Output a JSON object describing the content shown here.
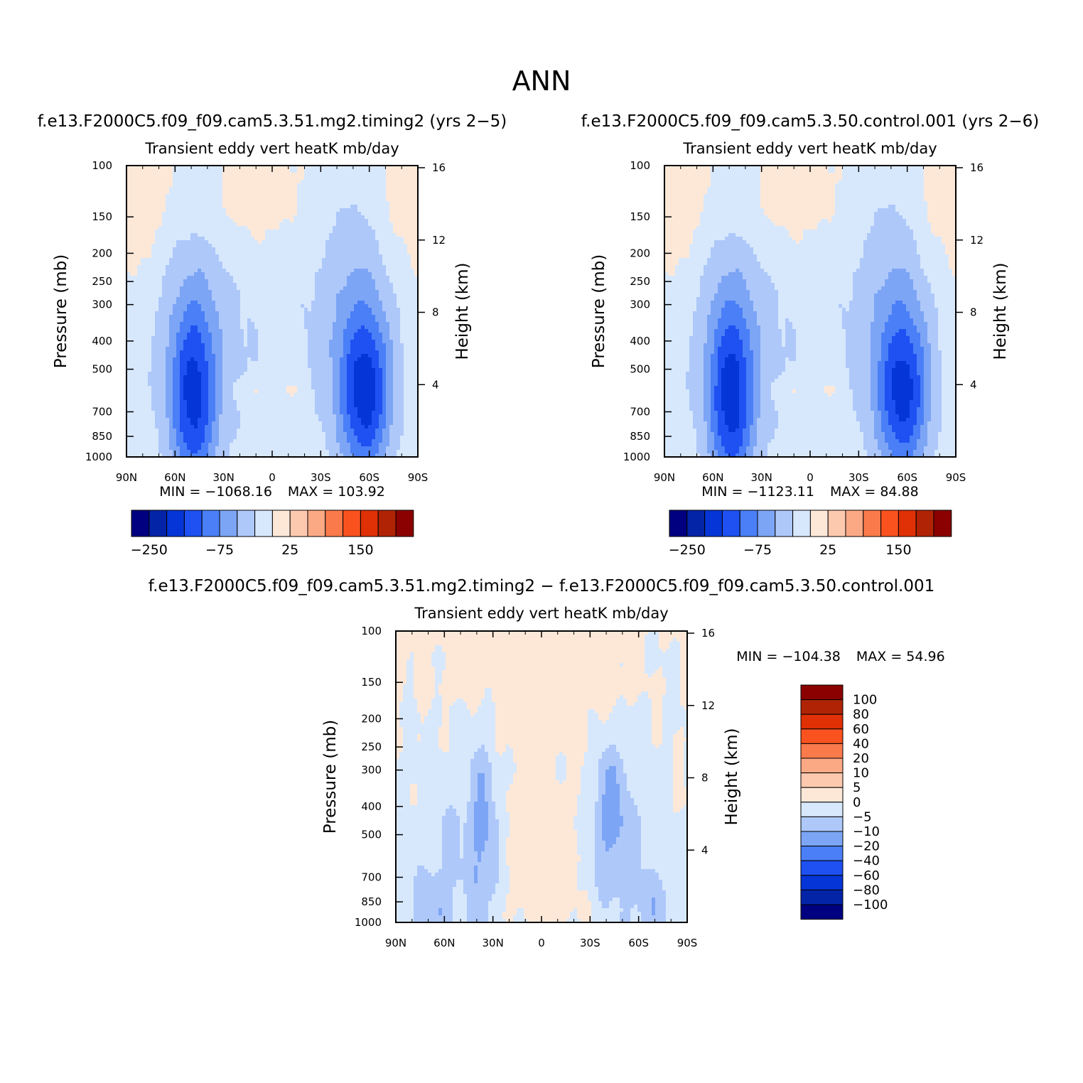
{
  "title": "ANN",
  "colors": {
    "pos_scale": [
      "#000080",
      "#0424a8",
      "#0535d6",
      "#1e50f2",
      "#4a7ff7",
      "#7da5f5",
      "#aec8fa",
      "#d7e8fc",
      "#fde8d8",
      "#fdc9ae",
      "#fba985",
      "#fa7a4c",
      "#f9521f",
      "#df3006",
      "#b02405",
      "#8b0000"
    ],
    "diff_scale": [
      "#000080",
      "#0424a8",
      "#0535d6",
      "#1e50f2",
      "#4a7ff7",
      "#7da5f5",
      "#aec8fa",
      "#d7e8fc",
      "#fde8d8",
      "#fdc9ae",
      "#fba985",
      "#fa7a4c",
      "#f9521f",
      "#df3006",
      "#b02405",
      "#8b0000"
    ]
  },
  "chart_data": [
    {
      "id": "panel-1",
      "type": "heatmap",
      "case_title": "f.e13.F2000C5.f09_f09.cam5.3.51.mg2.timing2 (yrs 2−5)",
      "title": "Transient eddy vert heatK mb/day",
      "ylabel": "Pressure (mb)",
      "ylabel_right": "Height (km)",
      "x_ticks": [
        "90N",
        "60N",
        "30N",
        "0",
        "30S",
        "60S",
        "90S"
      ],
      "y_ticks": [
        "100",
        "150",
        "200",
        "250",
        "300",
        "400",
        "500",
        "700",
        "850",
        "1000"
      ],
      "y_ticks_right": [
        "16",
        "12",
        "8",
        "4"
      ],
      "min_label": "MIN = −1068.16",
      "max_label": "MAX = 103.92",
      "min": -1068.16,
      "max": 103.92,
      "colorbar_labels": [
        "−250",
        "−75",
        "25",
        "150"
      ],
      "plume_intensity": [
        1.0,
        1.0
      ]
    },
    {
      "id": "panel-2",
      "type": "heatmap",
      "case_title": "f.e13.F2000C5.f09_f09.cam5.3.50.control.001 (yrs 2−6)",
      "title": "Transient eddy vert heatK mb/day",
      "ylabel": "Pressure (mb)",
      "ylabel_right": "Height (km)",
      "x_ticks": [
        "90N",
        "60N",
        "30N",
        "0",
        "30S",
        "60S",
        "90S"
      ],
      "y_ticks": [
        "100",
        "150",
        "200",
        "250",
        "300",
        "400",
        "500",
        "700",
        "850",
        "1000"
      ],
      "y_ticks_right": [
        "16",
        "12",
        "8",
        "4"
      ],
      "min_label": "MIN = −1123.11",
      "max_label": "MAX = 84.88",
      "min": -1123.11,
      "max": 84.88,
      "colorbar_labels": [
        "−250",
        "−75",
        "25",
        "150"
      ],
      "plume_intensity": [
        1.05,
        0.95
      ]
    },
    {
      "id": "panel-diff",
      "type": "heatmap",
      "case_title": "f.e13.F2000C5.f09_f09.cam5.3.51.mg2.timing2 − f.e13.F2000C5.f09_f09.cam5.3.50.control.001",
      "title": "Transient eddy vert heatK mb/day",
      "ylabel": "Pressure (mb)",
      "ylabel_right": "Height (km)",
      "x_ticks": [
        "90N",
        "60N",
        "30N",
        "0",
        "30S",
        "60S",
        "90S"
      ],
      "y_ticks": [
        "100",
        "150",
        "200",
        "250",
        "300",
        "400",
        "500",
        "700",
        "850",
        "1000"
      ],
      "y_ticks_right": [
        "16",
        "12",
        "8",
        "4"
      ],
      "min_label": "MIN = −104.38",
      "max_label": "MAX = 54.96",
      "min": -104.38,
      "max": 54.96,
      "colorbar_labels": [
        "100",
        "80",
        "60",
        "40",
        "20",
        "10",
        "5",
        "0",
        "−5",
        "−10",
        "−20",
        "−40",
        "−60",
        "−80",
        "−100"
      ]
    }
  ]
}
